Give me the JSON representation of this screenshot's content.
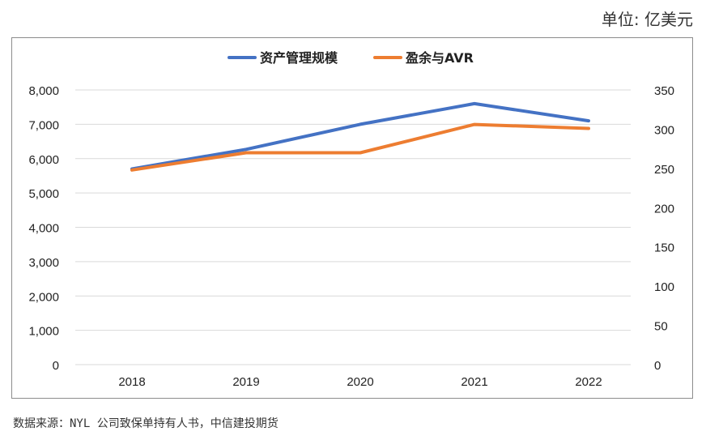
{
  "unit_label": "单位: 亿美元",
  "source_note": "数据来源：NYL 公司致保单持有人书，中信建投期货",
  "colors": {
    "blue": "#4472c4",
    "orange": "#ed7d31",
    "grid": "#d9d9d9"
  },
  "chart_data": {
    "type": "line",
    "categories": [
      "2018",
      "2019",
      "2020",
      "2021",
      "2022"
    ],
    "x": [
      2018,
      2019,
      2020,
      2021,
      2022
    ],
    "y_left": {
      "ylim": [
        0,
        8000
      ],
      "ticks": [
        "0",
        "1,000",
        "2,000",
        "3,000",
        "4,000",
        "5,000",
        "6,000",
        "7,000",
        "8,000"
      ]
    },
    "y_right": {
      "ylim": [
        0,
        350
      ],
      "ticks": [
        "0",
        "50",
        "100",
        "150",
        "200",
        "250",
        "300",
        "350"
      ]
    },
    "legend_position": "top-center",
    "grid": true,
    "series": [
      {
        "name": "资产管理规模",
        "axis": "left",
        "color": "#4472c4",
        "values": [
          5700,
          6270,
          7000,
          7600,
          7100
        ]
      },
      {
        "name": "盈余与AVR",
        "axis": "right",
        "color": "#ed7d31",
        "x": [
          2018,
          2019,
          2019.5,
          2020,
          2021,
          2022
        ],
        "values": [
          248,
          270,
          270,
          270,
          306,
          301
        ]
      }
    ]
  }
}
